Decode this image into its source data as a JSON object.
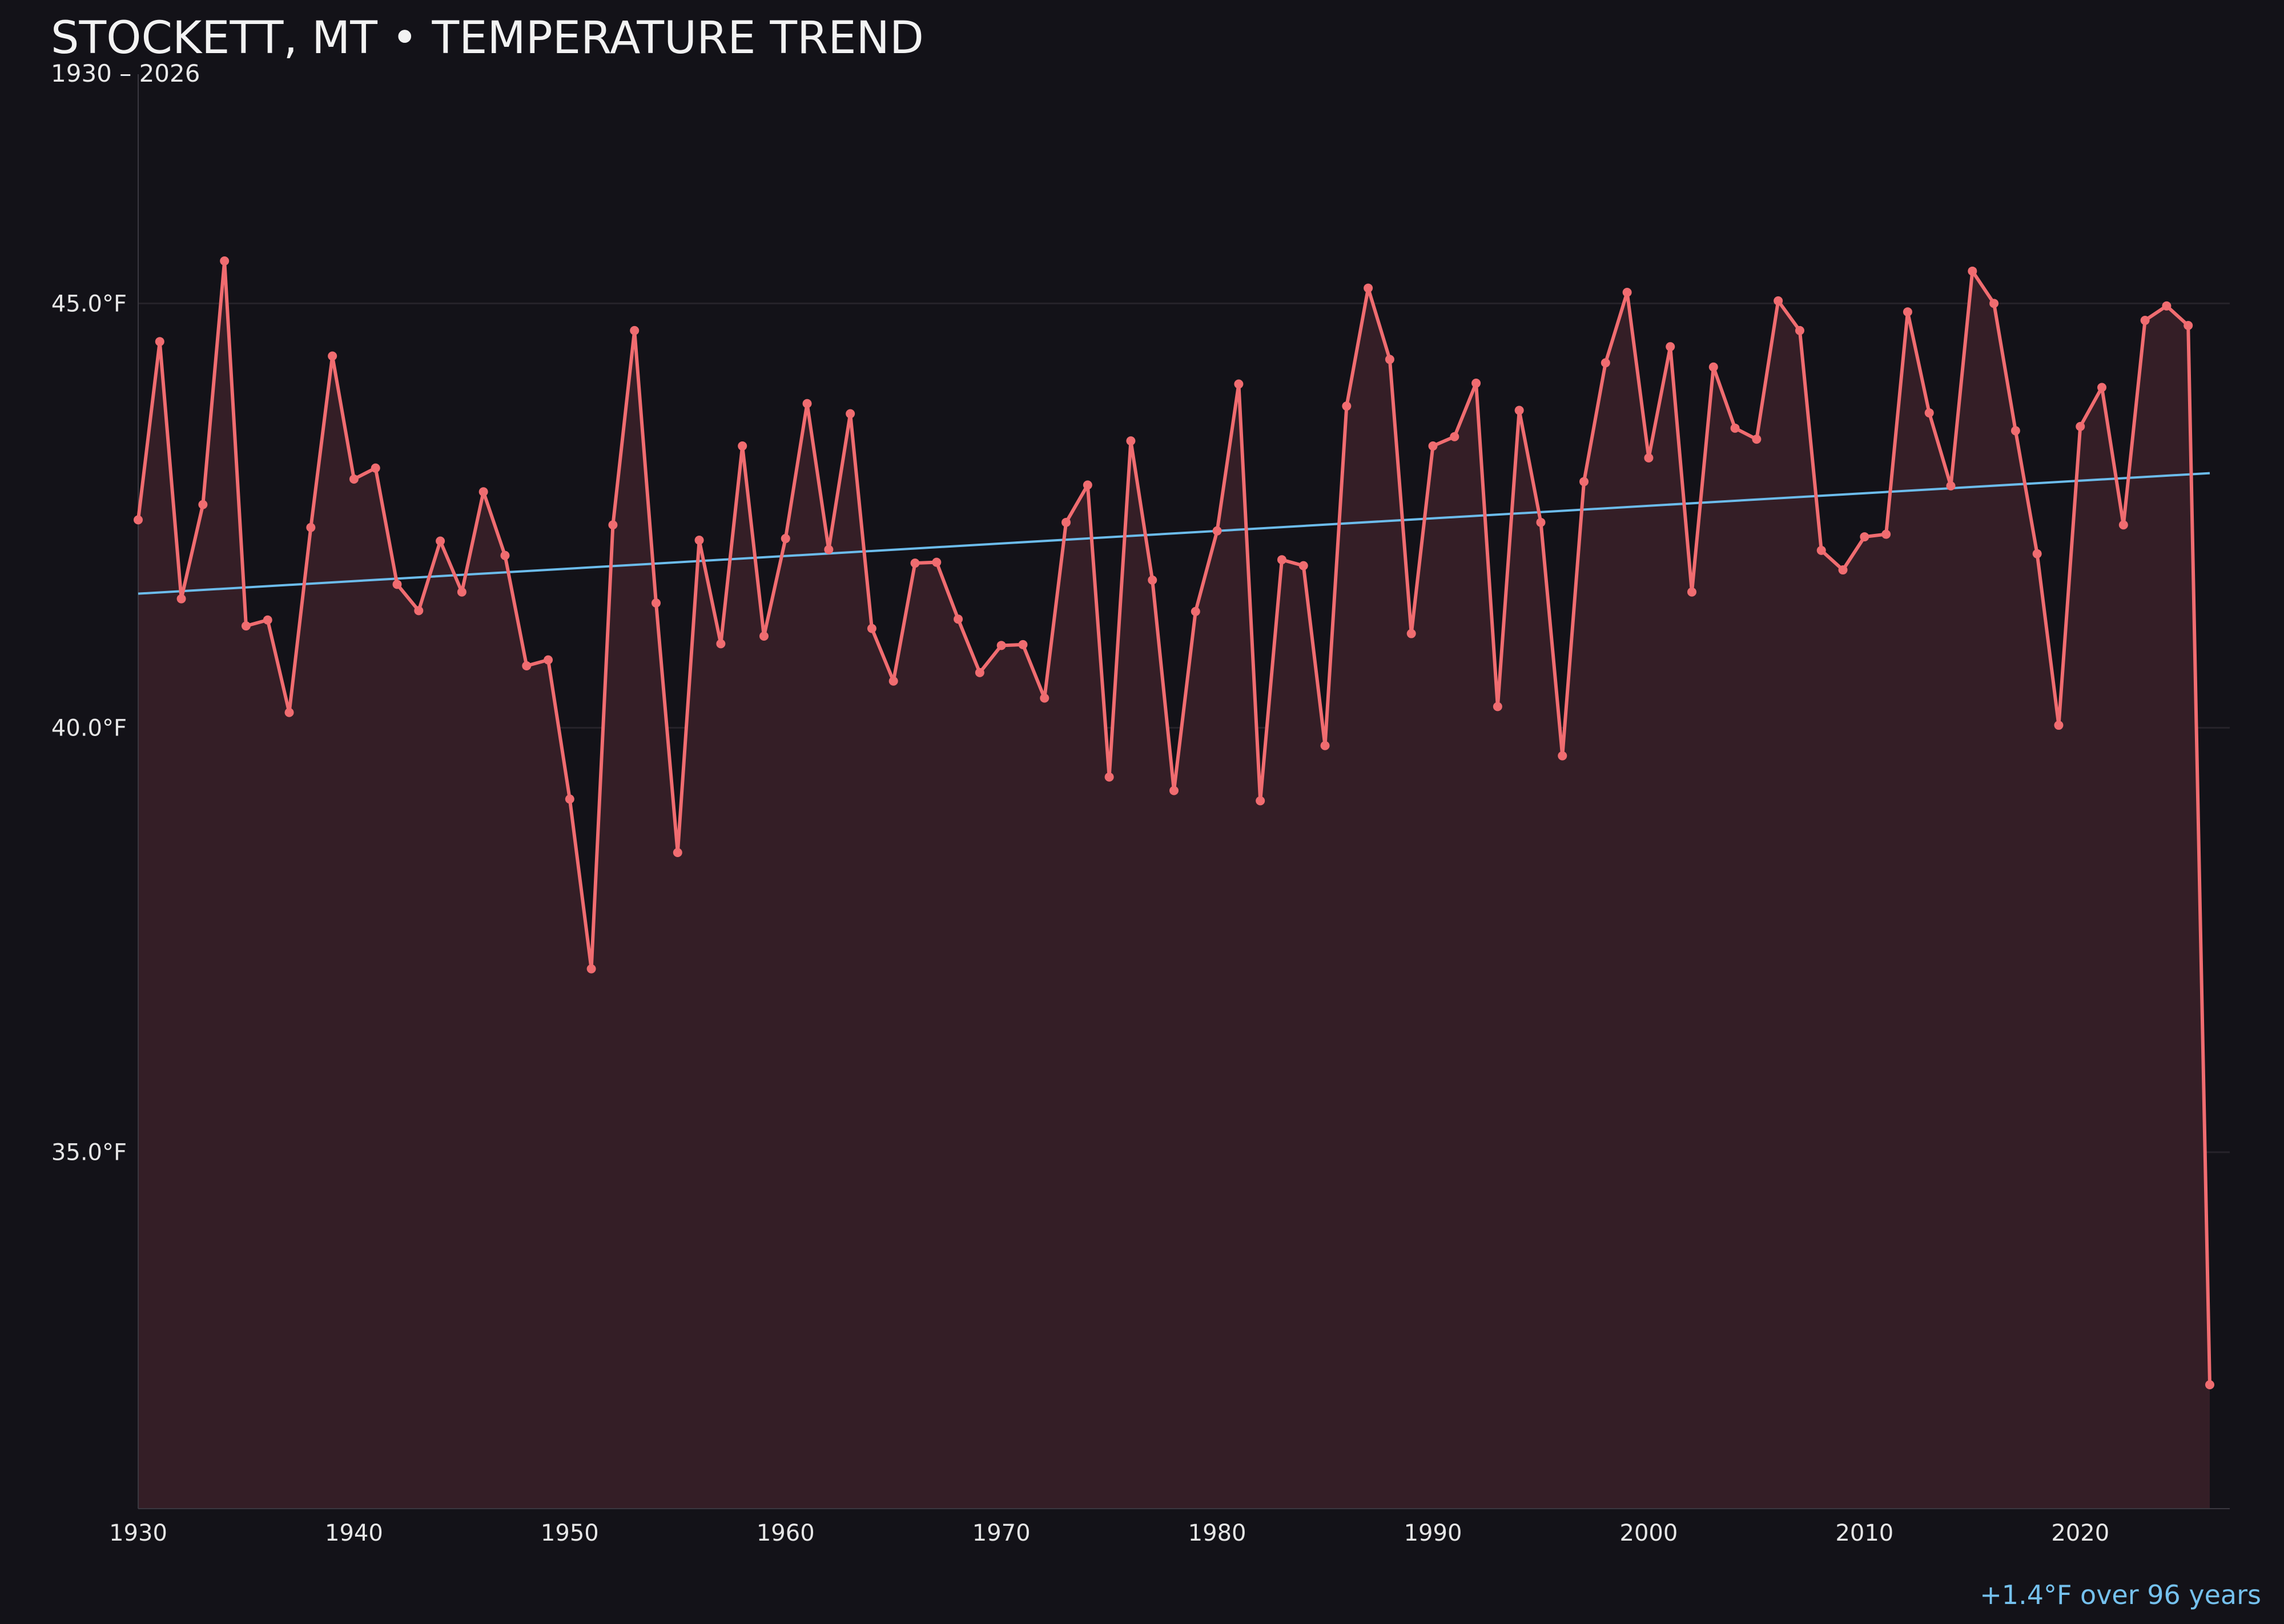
{
  "title": "STOCKETT, MT • TEMPERATURE TREND",
  "subtitle": "1930 – 2026",
  "footnote": "+1.4°F over 96 years",
  "colors": {
    "background": "#131218",
    "series_line": "#f06c70",
    "series_fill": "#341e26",
    "trend_line": "#6cbcec",
    "grid": "#26232a",
    "text": "#e6e6e6"
  },
  "chart_data": {
    "type": "line",
    "title": "STOCKETT, MT • TEMPERATURE TREND",
    "subtitle": "1930 – 2026",
    "xlabel": "",
    "ylabel": "",
    "xlim": [
      1930,
      2026
    ],
    "ylim": [
      30.8,
      47.7
    ],
    "grid": true,
    "x_ticks": [
      1930,
      1940,
      1950,
      1960,
      1970,
      1980,
      1990,
      2000,
      2010,
      2020
    ],
    "y_ticks": [
      35.0,
      40.0,
      45.0
    ],
    "y_tick_labels": [
      "35.0°F",
      "40.0°F",
      "45.0°F"
    ],
    "series": [
      {
        "x": [
          1930,
          1931,
          1932,
          1933,
          1934,
          1935,
          1936,
          1937,
          1938,
          1939,
          1940,
          1941,
          1942,
          1943,
          1944,
          1945,
          1946,
          1947,
          1948,
          1949,
          1950,
          1951,
          1952,
          1953,
          1954,
          1955,
          1956,
          1957,
          1958,
          1959,
          1960,
          1961,
          1962,
          1963,
          1964,
          1965,
          1966,
          1967,
          1968,
          1969,
          1970,
          1971,
          1972,
          1973,
          1974,
          1975,
          1976,
          1977,
          1978,
          1979,
          1980,
          1981,
          1982,
          1983,
          1984,
          1985,
          1986,
          1987,
          1988,
          1989,
          1990,
          1991,
          1992,
          1993,
          1994,
          1995,
          1996,
          1997,
          1998,
          1999,
          2000,
          2001,
          2002,
          2003,
          2004,
          2005,
          2006,
          2007,
          2008,
          2009,
          2010,
          2011,
          2012,
          2013,
          2014,
          2015,
          2016,
          2017,
          2018,
          2019,
          2020,
          2021,
          2022,
          2023,
          2024,
          2025,
          2026
        ],
        "values": [
          42.45,
          44.55,
          41.52,
          42.63,
          45.5,
          41.2,
          41.27,
          40.18,
          42.36,
          44.38,
          42.93,
          43.06,
          41.69,
          41.38,
          42.2,
          41.6,
          42.78,
          42.03,
          40.73,
          40.8,
          39.16,
          37.16,
          42.39,
          44.68,
          41.47,
          38.53,
          42.21,
          40.99,
          43.32,
          41.08,
          42.23,
          43.82,
          42.1,
          43.7,
          41.17,
          40.55,
          41.94,
          41.95,
          41.28,
          40.65,
          40.97,
          40.98,
          40.35,
          42.42,
          42.86,
          39.42,
          43.38,
          41.74,
          39.26,
          41.37,
          42.32,
          44.05,
          39.14,
          41.98,
          41.91,
          39.79,
          43.79,
          45.18,
          44.34,
          41.11,
          43.32,
          43.43,
          44.06,
          40.25,
          43.74,
          42.42,
          39.67,
          42.9,
          44.3,
          45.13,
          43.18,
          44.49,
          41.6,
          44.25,
          43.53,
          43.4,
          45.03,
          44.68,
          42.09,
          41.86,
          42.25,
          42.28,
          44.9,
          43.71,
          42.85,
          45.38,
          45.0,
          43.5,
          42.05,
          40.03,
          43.55,
          44.01,
          42.39,
          44.8,
          44.97,
          44.74,
          32.26
        ]
      }
    ],
    "trend": {
      "x": [
        1930,
        2026
      ],
      "values": [
        41.58,
        43.0
      ]
    }
  }
}
